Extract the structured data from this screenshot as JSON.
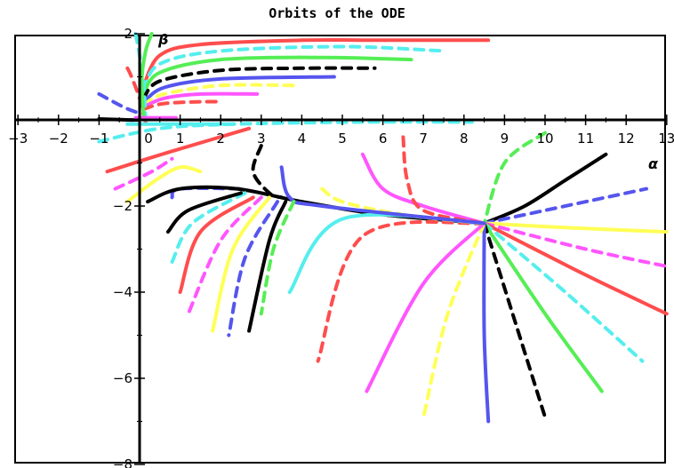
{
  "chart_data": {
    "type": "line",
    "title": "Orbits of the ODE",
    "xlabel": "α",
    "ylabel": "β",
    "xlim": [
      -3,
      13
    ],
    "ylim": [
      -8,
      2
    ],
    "x_ticks": [
      -3,
      -2,
      -1,
      0,
      1,
      2,
      3,
      4,
      5,
      6,
      7,
      8,
      9,
      10,
      11,
      12,
      13
    ],
    "x_tick_labels": [
      "−3",
      "−2",
      "−1",
      "0",
      "1",
      "2",
      "3",
      "4",
      "5",
      "6",
      "7",
      "8",
      "9",
      "10",
      "11",
      "12",
      "13"
    ],
    "y_ticks": [
      2,
      0,
      -2,
      -4,
      -6,
      -8
    ],
    "y_tick_labels": [
      "2",
      "0",
      "−2",
      "−4",
      "−6",
      "−8"
    ],
    "grid": false,
    "legend": "none",
    "series": [
      {
        "color": "#ff4d4d",
        "style": "solid",
        "x": [
          0.1,
          0.5,
          1.5,
          4,
          6,
          8.6
        ],
        "y": [
          0.8,
          1.5,
          1.75,
          1.85,
          1.85,
          1.85
        ]
      },
      {
        "color": "#55eeee",
        "style": "dashed",
        "x": [
          0.1,
          0.5,
          2,
          5,
          7.5
        ],
        "y": [
          0.7,
          1.3,
          1.6,
          1.7,
          1.6
        ]
      },
      {
        "color": "#55ee55",
        "style": "solid",
        "x": [
          0.1,
          0.5,
          2,
          4.5,
          6.7
        ],
        "y": [
          0.6,
          1.1,
          1.4,
          1.45,
          1.4
        ]
      },
      {
        "color": "#000000",
        "style": "dashed",
        "x": [
          0.1,
          0.5,
          2,
          4,
          5.8
        ],
        "y": [
          0.5,
          0.9,
          1.15,
          1.2,
          1.2
        ]
      },
      {
        "color": "#5555ee",
        "style": "solid",
        "x": [
          0.1,
          0.6,
          2,
          4.8
        ],
        "y": [
          0.4,
          0.75,
          0.95,
          1.0
        ]
      },
      {
        "color": "#ffff55",
        "style": "dashed",
        "x": [
          0.1,
          0.6,
          2,
          3.8
        ],
        "y": [
          0.35,
          0.6,
          0.8,
          0.8
        ]
      },
      {
        "color": "#ff55ff",
        "style": "solid",
        "x": [
          0.1,
          0.6,
          1.5,
          2.9
        ],
        "y": [
          0.3,
          0.5,
          0.6,
          0.6
        ]
      },
      {
        "color": "#ff4d4d",
        "style": "dashed",
        "x": [
          0.1,
          0.6,
          1.5,
          2
        ],
        "y": [
          0.25,
          0.38,
          0.42,
          0.42
        ]
      },
      {
        "color": "#ff4d4d",
        "style": "dashed",
        "x": [
          -0.3,
          -0.2,
          0.0,
          0.1,
          0.2
        ],
        "y": [
          1.2,
          1.0,
          0.5,
          0.1,
          -0.2
        ]
      },
      {
        "color": "#55eeee",
        "style": "dashed",
        "x": [
          -0.1,
          0.0,
          0.1,
          0.15
        ],
        "y": [
          2.0,
          1.5,
          0.8,
          0.0
        ]
      },
      {
        "color": "#55ee55",
        "style": "solid",
        "x": [
          0.3,
          0.15,
          0.05,
          0.1
        ],
        "y": [
          2.0,
          1.6,
          0.9,
          0.1
        ]
      },
      {
        "color": "#5555ee",
        "style": "dashed",
        "x": [
          -1.0,
          -0.4,
          0.0
        ],
        "y": [
          0.6,
          0.3,
          0.15
        ]
      },
      {
        "color": "#000000",
        "style": "solid",
        "x": [
          -1.0,
          -0.3,
          0.0
        ],
        "y": [
          0.02,
          0.0,
          0.0
        ]
      },
      {
        "color": "#ff55ff",
        "style": "solid",
        "x": [
          -0.1,
          0.4,
          0.9
        ],
        "y": [
          0.05,
          0.05,
          0.05
        ]
      },
      {
        "color": "#55eeee",
        "style": "dashed",
        "x": [
          -1.0,
          0.5,
          2.3,
          5.5,
          8.2
        ],
        "y": [
          -0.5,
          -0.2,
          -0.1,
          -0.05,
          -0.05
        ]
      },
      {
        "color": "#55eeee",
        "style": "solid",
        "x": [
          -0.3,
          0.5,
          2,
          2.3
        ],
        "y": [
          -0.1,
          -0.1,
          -0.1,
          -0.1
        ]
      },
      {
        "color": "#ff4d4d",
        "style": "solid",
        "x": [
          -0.8,
          0.2,
          0.9,
          2.7
        ],
        "y": [
          -1.2,
          -0.9,
          -0.7,
          -0.2
        ]
      },
      {
        "color": "#ff55ff",
        "style": "dashed",
        "x": [
          -0.6,
          0.3,
          0.8
        ],
        "y": [
          -1.6,
          -1.2,
          -0.9
        ]
      },
      {
        "color": "#ffff55",
        "style": "solid",
        "x": [
          -0.3,
          0.4,
          1.0,
          1.5
        ],
        "y": [
          -1.9,
          -1.4,
          -1.1,
          -1.2
        ]
      },
      {
        "color": "#5555ee",
        "style": "dashed",
        "x": [
          0.8,
          1.0,
          2.5
        ],
        "y": [
          -1.8,
          -1.6,
          -1.6
        ]
      },
      {
        "color": "#000000",
        "style": "solid",
        "x": [
          0.2,
          1.0,
          2.4,
          4.0,
          6.0,
          8.5
        ],
        "y": [
          -1.9,
          -1.6,
          -1.6,
          -1.9,
          -2.2,
          -2.4
        ]
      },
      {
        "color": "#000000",
        "style": "solid",
        "x": [
          8.5,
          9.5,
          10.5,
          11.5
        ],
        "y": [
          -2.4,
          -2.0,
          -1.4,
          -0.8
        ]
      },
      {
        "color": "#5555ee",
        "style": "dashed",
        "x": [
          8.5,
          10.0,
          11.5,
          12.5
        ],
        "y": [
          -2.4,
          -2.1,
          -1.8,
          -1.6
        ]
      },
      {
        "color": "#ffff55",
        "style": "solid",
        "x": [
          8.5,
          10.5,
          13.0
        ],
        "y": [
          -2.4,
          -2.5,
          -2.6
        ]
      },
      {
        "color": "#ff55ff",
        "style": "dashed",
        "x": [
          8.5,
          11.0,
          13.0
        ],
        "y": [
          -2.4,
          -3.0,
          -3.4
        ]
      },
      {
        "color": "#ff4d4d",
        "style": "solid",
        "x": [
          8.5,
          11.0,
          13.0
        ],
        "y": [
          -2.4,
          -3.6,
          -4.5
        ]
      },
      {
        "color": "#55eeee",
        "style": "dashed",
        "x": [
          8.5,
          10.5,
          12.4
        ],
        "y": [
          -2.4,
          -4.0,
          -5.6
        ]
      },
      {
        "color": "#55ee55",
        "style": "solid",
        "x": [
          8.5,
          10.0,
          11.4
        ],
        "y": [
          -2.4,
          -4.5,
          -6.3
        ]
      },
      {
        "color": "#000000",
        "style": "dashed",
        "x": [
          8.5,
          9.2,
          10.0
        ],
        "y": [
          -2.4,
          -4.5,
          -6.9
        ]
      },
      {
        "color": "#5555ee",
        "style": "solid",
        "x": [
          8.5,
          8.5,
          8.6
        ],
        "y": [
          -2.4,
          -5.0,
          -7.0
        ]
      },
      {
        "color": "#ffff55",
        "style": "dashed",
        "x": [
          8.5,
          7.6,
          7.0
        ],
        "y": [
          -2.4,
          -4.5,
          -6.9
        ]
      },
      {
        "color": "#ff55ff",
        "style": "solid",
        "x": [
          8.5,
          7.0,
          5.6
        ],
        "y": [
          -2.4,
          -3.8,
          -6.3
        ]
      },
      {
        "color": "#ff4d4d",
        "style": "dashed",
        "x": [
          8.5,
          5.5,
          4.4
        ],
        "y": [
          -2.4,
          -2.7,
          -5.6
        ]
      },
      {
        "color": "#55eeee",
        "style": "solid",
        "x": [
          8.5,
          5.0,
          3.7
        ],
        "y": [
          -2.4,
          -2.3,
          -4.0
        ]
      },
      {
        "color": "#ff55ff",
        "style": "solid",
        "x": [
          5.5,
          6.0,
          7.0,
          8.5
        ],
        "y": [
          -0.8,
          -1.6,
          -2.0,
          -2.4
        ]
      },
      {
        "color": "#ff4d4d",
        "style": "dashed",
        "x": [
          6.5,
          6.6,
          7.0,
          8.5
        ],
        "y": [
          -0.4,
          -1.4,
          -2.1,
          -2.4
        ]
      },
      {
        "color": "#55ee55",
        "style": "dashed",
        "x": [
          10.0,
          9.0,
          8.5
        ],
        "y": [
          -0.3,
          -1.0,
          -2.4
        ]
      },
      {
        "color": "#ffff55",
        "style": "dashed",
        "x": [
          4.5,
          5.0,
          6.5,
          8.5
        ],
        "y": [
          -1.6,
          -1.9,
          -2.2,
          -2.4
        ]
      },
      {
        "color": "#5555ee",
        "style": "solid",
        "x": [
          3.5,
          3.7,
          4.5,
          8.5
        ],
        "y": [
          -1.1,
          -1.8,
          -2.0,
          -2.4
        ]
      },
      {
        "color": "#000000",
        "style": "dashed",
        "x": [
          3.0,
          2.8,
          3.2,
          3.5
        ],
        "y": [
          -0.6,
          -1.2,
          -1.7,
          -1.8
        ]
      },
      {
        "color": "#000000",
        "style": "solid",
        "x": [
          3.6,
          3.2,
          2.7
        ],
        "y": [
          -1.9,
          -2.8,
          -4.9
        ]
      },
      {
        "color": "#55ee55",
        "style": "dashed",
        "x": [
          3.8,
          3.3,
          3.0
        ],
        "y": [
          -1.9,
          -3.0,
          -4.5
        ]
      },
      {
        "color": "#5555ee",
        "style": "dashed",
        "x": [
          3.4,
          2.6,
          2.2
        ],
        "y": [
          -1.9,
          -3.2,
          -5.0
        ]
      },
      {
        "color": "#ffff55",
        "style": "solid",
        "x": [
          3.2,
          2.3,
          1.8
        ],
        "y": [
          -1.8,
          -3.0,
          -4.9
        ]
      },
      {
        "color": "#ff55ff",
        "style": "dashed",
        "x": [
          3.0,
          2.0,
          1.2
        ],
        "y": [
          -1.8,
          -2.8,
          -4.5
        ]
      },
      {
        "color": "#ff4d4d",
        "style": "solid",
        "x": [
          2.8,
          1.5,
          1.0
        ],
        "y": [
          -1.8,
          -2.6,
          -4.0
        ]
      },
      {
        "color": "#55eeee",
        "style": "dashed",
        "x": [
          2.6,
          1.3,
          0.8
        ],
        "y": [
          -1.7,
          -2.4,
          -3.3
        ]
      },
      {
        "color": "#000000",
        "style": "solid",
        "x": [
          2.5,
          1.2,
          0.7
        ],
        "y": [
          -1.7,
          -2.1,
          -2.6
        ]
      }
    ]
  }
}
